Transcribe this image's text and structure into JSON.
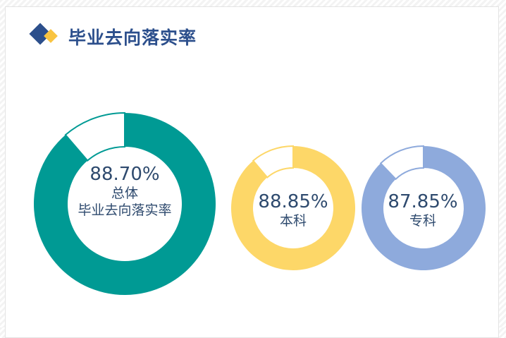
{
  "header": {
    "title": "毕业去向落实率",
    "icon": "diamond-logo-icon",
    "logo_colors": [
      "#2c4f8c",
      "#f9c441"
    ]
  },
  "chart_data": [
    {
      "type": "pie",
      "variant": "donut",
      "value": 88.7,
      "label": "88.70%",
      "caption": [
        "总体",
        "毕业去向落实率"
      ],
      "color": "#009a94"
    },
    {
      "type": "pie",
      "variant": "donut",
      "value": 88.85,
      "label": "88.85%",
      "caption": [
        "本科"
      ],
      "color": "#fdd768"
    },
    {
      "type": "pie",
      "variant": "donut",
      "value": 87.85,
      "label": "87.85%",
      "caption": [
        "专科"
      ],
      "color": "#8eaadc"
    }
  ]
}
